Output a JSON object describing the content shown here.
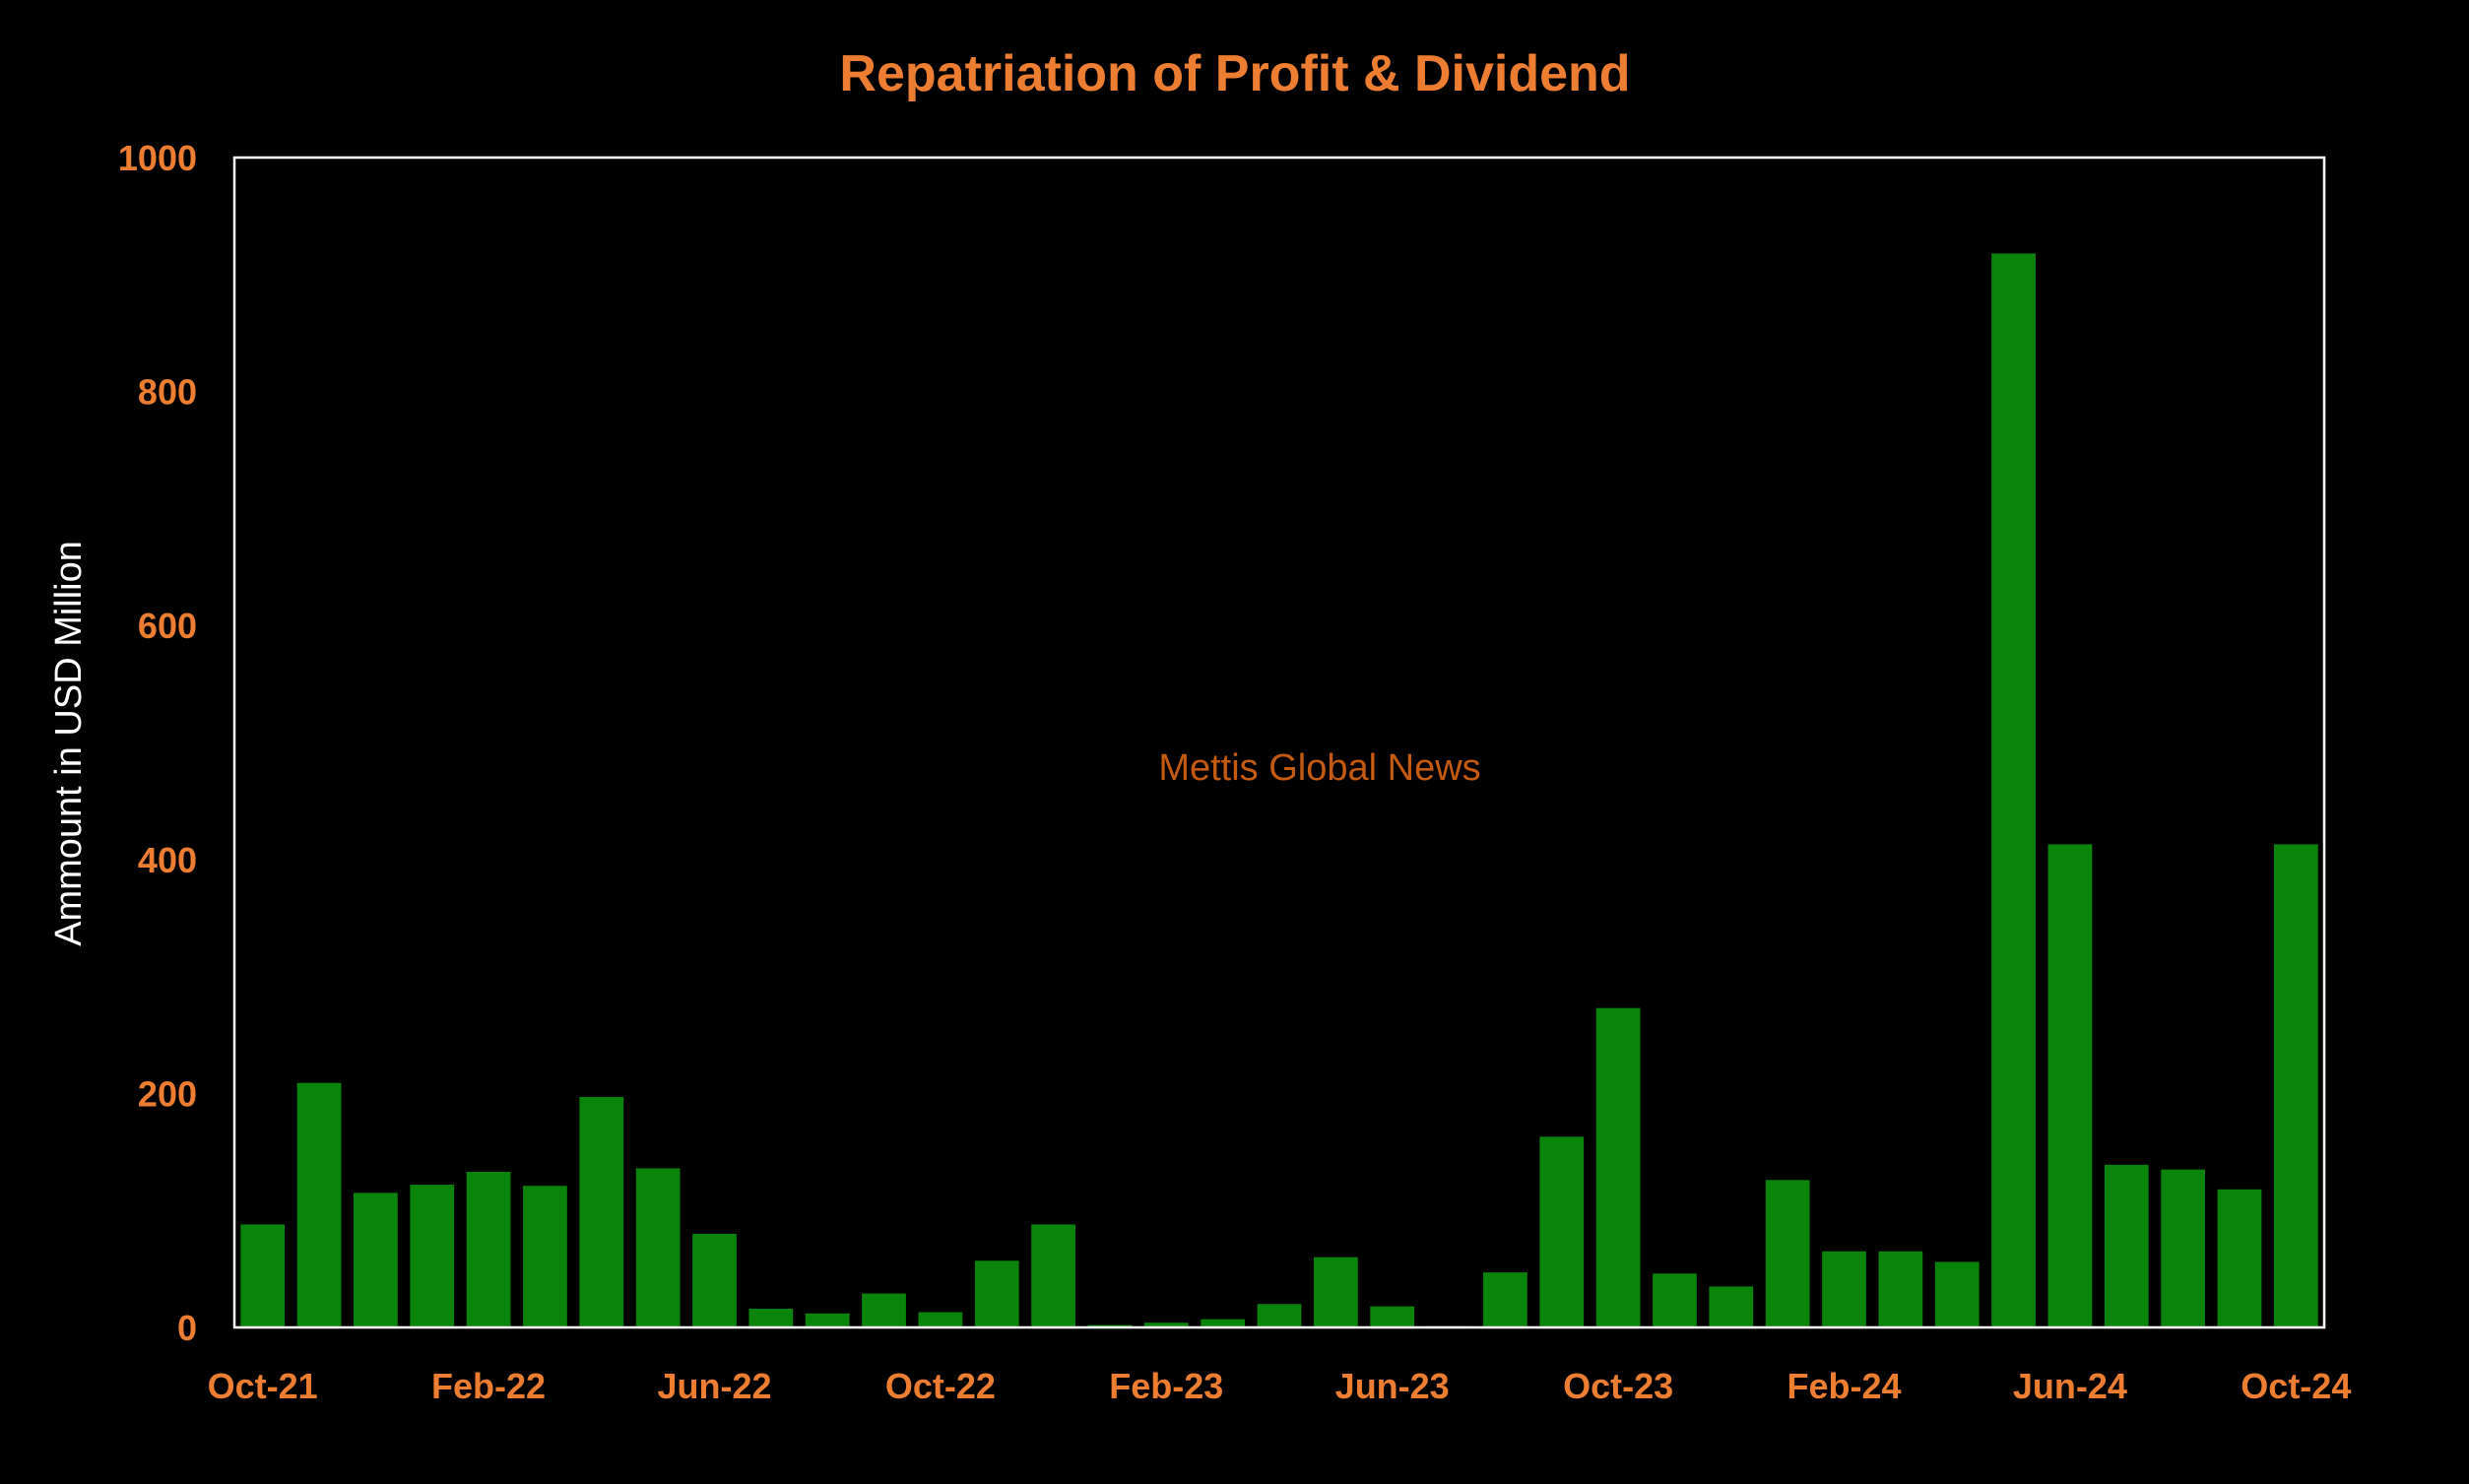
{
  "colors": {
    "background": "#000000",
    "accent": "#ED7D31",
    "bar": "#0A840A",
    "axis_frame": "#FFFFFF",
    "ylabel": "#FFFFFF",
    "watermark": "#C55A11"
  },
  "watermark": "Mettis Global News",
  "chart_data": {
    "type": "bar",
    "title": "Repatriation of Profit & Dividend",
    "xlabel": "",
    "ylabel": "Ammount in USD Million",
    "ylim": [
      0,
      1000
    ],
    "yticks": [
      0,
      200,
      400,
      600,
      800,
      1000
    ],
    "grid": false,
    "legend": "none",
    "x_tick_labels": [
      "Oct-21",
      "Feb-22",
      "Jun-22",
      "Oct-22",
      "Feb-23",
      "Jun-23",
      "Oct-23",
      "Feb-24",
      "Jun-24",
      "Oct-24"
    ],
    "categories": [
      "Oct-21",
      "Nov-21",
      "Dec-21",
      "Jan-22",
      "Feb-22",
      "Mar-22",
      "Apr-22",
      "May-22",
      "Jun-22",
      "Jul-22",
      "Aug-22",
      "Sep-22",
      "Oct-22",
      "Nov-22",
      "Dec-22",
      "Jan-23",
      "Feb-23",
      "Mar-23",
      "Apr-23",
      "May-23",
      "Jun-23",
      "Jul-23",
      "Aug-23",
      "Sep-23",
      "Oct-23",
      "Nov-23",
      "Dec-23",
      "Jan-24",
      "Feb-24",
      "Mar-24",
      "Apr-24",
      "May-24",
      "Jun-24",
      "Jul-24",
      "Aug-24",
      "Sep-24",
      "Oct-24"
    ],
    "values": [
      88,
      209,
      115,
      122,
      133,
      121,
      197,
      136,
      80,
      16,
      12,
      29,
      13,
      57,
      88,
      2,
      4,
      7,
      20,
      60,
      18,
      1,
      47,
      163,
      273,
      46,
      35,
      126,
      65,
      65,
      56,
      918,
      413,
      139,
      135,
      118,
      413
    ]
  }
}
